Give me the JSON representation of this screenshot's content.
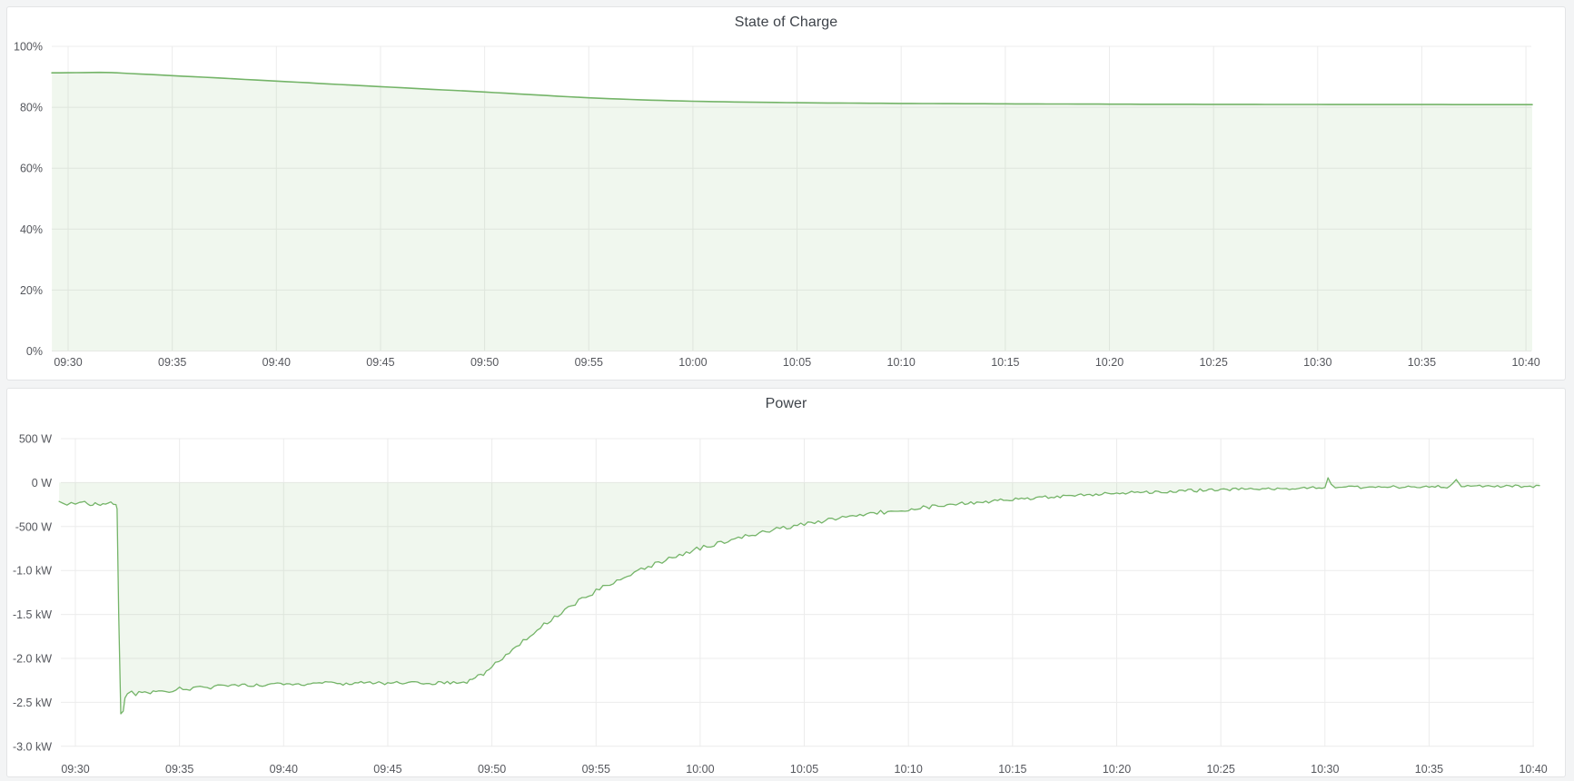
{
  "theme": {
    "page_bg": "#f3f4f5",
    "panel_bg": "#ffffff",
    "panel_border": "#e3e4e6",
    "grid_color": "#ececec",
    "tick_text_color": "#55575d",
    "title_text_color": "#3e434a"
  },
  "panels": [
    {
      "title": "State of Charge",
      "chart_data": {
        "type": "area",
        "title": "State of Charge",
        "legend": false,
        "grid": true,
        "x_ticks": [
          "09:30",
          "09:35",
          "09:40",
          "09:45",
          "09:50",
          "09:55",
          "10:00",
          "10:05",
          "10:10",
          "10:15",
          "10:20",
          "10:25",
          "10:30",
          "10:35",
          "10:40"
        ],
        "x_tick_minutes": [
          0,
          5,
          10,
          15,
          20,
          25,
          30,
          35,
          40,
          45,
          50,
          55,
          60,
          65,
          70
        ],
        "t_unit": "minutes after 09:30",
        "t_domain": [
          -0.78,
          70.3
        ],
        "y_ticks": [
          "100%",
          "80%",
          "60%",
          "40%",
          "20%",
          "0%"
        ],
        "y_tick_values": [
          100,
          80,
          60,
          40,
          20,
          0
        ],
        "ylim": [
          0,
          100
        ],
        "fill_to_value": 0,
        "series": [
          {
            "name": "State of Charge",
            "unit": "%",
            "color": "#74b468",
            "fill": "rgba(116,180,104,0.11)",
            "line_width": 1.6,
            "noise_segments": [],
            "points": [
              [
                -0.78,
                91.3
              ],
              [
                0,
                91.32
              ],
              [
                0.8,
                91.4
              ],
              [
                1.5,
                91.45
              ],
              [
                2.1,
                91.38
              ],
              [
                2.6,
                91.2
              ],
              [
                3,
                91.05
              ],
              [
                4,
                90.72
              ],
              [
                5,
                90.38
              ],
              [
                6,
                90.03
              ],
              [
                7,
                89.68
              ],
              [
                8,
                89.32
              ],
              [
                9,
                88.95
              ],
              [
                10,
                88.58
              ],
              [
                11,
                88.22
              ],
              [
                12,
                87.85
              ],
              [
                13,
                87.48
              ],
              [
                14,
                87.12
              ],
              [
                15,
                86.76
              ],
              [
                16,
                86.4
              ],
              [
                17,
                86.05
              ],
              [
                18,
                85.7
              ],
              [
                19,
                85.36
              ],
              [
                20,
                85.0
              ],
              [
                21,
                84.62
              ],
              [
                22,
                84.22
              ],
              [
                23,
                83.84
              ],
              [
                24,
                83.46
              ],
              [
                25,
                83.1
              ],
              [
                26,
                82.8
              ],
              [
                27,
                82.55
              ],
              [
                28,
                82.33
              ],
              [
                29,
                82.14
              ],
              [
                30,
                81.98
              ],
              [
                31,
                81.85
              ],
              [
                32,
                81.74
              ],
              [
                33,
                81.65
              ],
              [
                34,
                81.57
              ],
              [
                35,
                81.5
              ],
              [
                36,
                81.44
              ],
              [
                37,
                81.39
              ],
              [
                38,
                81.34
              ],
              [
                39,
                81.3
              ],
              [
                40,
                81.26
              ],
              [
                42,
                81.2
              ],
              [
                44,
                81.15
              ],
              [
                46,
                81.1
              ],
              [
                48,
                81.06
              ],
              [
                50,
                81.02
              ],
              [
                52,
                80.99
              ],
              [
                54,
                80.97
              ],
              [
                56,
                80.95
              ],
              [
                58,
                80.93
              ],
              [
                60,
                80.91
              ],
              [
                62,
                80.9
              ],
              [
                64,
                80.89
              ],
              [
                66,
                80.88
              ],
              [
                68,
                80.87
              ],
              [
                70.3,
                80.86
              ]
            ]
          }
        ]
      }
    },
    {
      "title": "Power",
      "chart_data": {
        "type": "area",
        "title": "Power",
        "legend": false,
        "grid": true,
        "x_ticks": [
          "09:30",
          "09:35",
          "09:40",
          "09:45",
          "09:50",
          "09:55",
          "10:00",
          "10:05",
          "10:10",
          "10:15",
          "10:20",
          "10:25",
          "10:30",
          "10:35",
          "10:40"
        ],
        "x_tick_minutes": [
          0,
          5,
          10,
          15,
          20,
          25,
          30,
          35,
          40,
          45,
          50,
          55,
          60,
          65,
          70
        ],
        "t_unit": "minutes after 09:30",
        "t_domain": [
          -0.78,
          70.3
        ],
        "y_ticks": [
          "500 W",
          "0 W",
          "-500 W",
          "-1.0 kW",
          "-1.5 kW",
          "-2.0 kW",
          "-2.5 kW",
          "-3.0 kW"
        ],
        "y_tick_values": [
          500,
          0,
          -500,
          -1000,
          -1500,
          -2000,
          -2500,
          -3000
        ],
        "ylim": [
          -3000,
          500
        ],
        "fill_to_value": 0,
        "series": [
          {
            "name": "Power",
            "unit": "W",
            "color": "#74b468",
            "fill": "rgba(116,180,104,0.11)",
            "line_width": 1.3,
            "noise_seed": 20240917,
            "noise_step_min": 0.15,
            "noise_segments": [
              [
                -0.8,
                1.95,
                13
              ],
              [
                1.95,
                2.45,
                0
              ],
              [
                2.45,
                19.0,
                19
              ],
              [
                19.0,
                30.0,
                26
              ],
              [
                30.0,
                45.0,
                24
              ],
              [
                45.0,
                59.9,
                17
              ],
              [
                59.9,
                60.6,
                0
              ],
              [
                60.6,
                66.15,
                16
              ],
              [
                66.15,
                66.7,
                0
              ],
              [
                66.7,
                70.4,
                15
              ]
            ],
            "points": [
              [
                -0.78,
                -215
              ],
              [
                -0.6,
                -235
              ],
              [
                -0.4,
                -255
              ],
              [
                -0.2,
                -230
              ],
              [
                0,
                -250
              ],
              [
                0.2,
                -235
              ],
              [
                0.45,
                -225
              ],
              [
                0.7,
                -260
              ],
              [
                0.95,
                -240
              ],
              [
                1.2,
                -265
              ],
              [
                1.45,
                -235
              ],
              [
                1.7,
                -220
              ],
              [
                1.95,
                -250
              ],
              [
                2.0,
                -300
              ],
              [
                2.08,
                -1500
              ],
              [
                2.18,
                -2630
              ],
              [
                2.3,
                -2600
              ],
              [
                2.38,
                -2450
              ],
              [
                2.5,
                -2410
              ],
              [
                2.7,
                -2390
              ],
              [
                2.9,
                -2410
              ],
              [
                3.2,
                -2380
              ],
              [
                3.6,
                -2390
              ],
              [
                4,
                -2360
              ],
              [
                4.5,
                -2370
              ],
              [
                5,
                -2340
              ],
              [
                5.5,
                -2350
              ],
              [
                6,
                -2320
              ],
              [
                6.5,
                -2330
              ],
              [
                7,
                -2310
              ],
              [
                7.5,
                -2315
              ],
              [
                8,
                -2295
              ],
              [
                8.7,
                -2305
              ],
              [
                9.4,
                -2290
              ],
              [
                10,
                -2285
              ],
              [
                11,
                -2290
              ],
              [
                12,
                -2280
              ],
              [
                13,
                -2287
              ],
              [
                14,
                -2280
              ],
              [
                15,
                -2284
              ],
              [
                16,
                -2278
              ],
              [
                17,
                -2282
              ],
              [
                18,
                -2276
              ],
              [
                18.8,
                -2268
              ],
              [
                19.2,
                -2230
              ],
              [
                19.6,
                -2170
              ],
              [
                20,
                -2090
              ],
              [
                20.5,
                -1995
              ],
              [
                21,
                -1900
              ],
              [
                21.5,
                -1800
              ],
              [
                22,
                -1705
              ],
              [
                22.5,
                -1615
              ],
              [
                23,
                -1530
              ],
              [
                23.5,
                -1448
              ],
              [
                24,
                -1370
              ],
              [
                24.5,
                -1298
              ],
              [
                25,
                -1232
              ],
              [
                25.5,
                -1170
              ],
              [
                26,
                -1112
              ],
              [
                26.5,
                -1057
              ],
              [
                27,
                -1005
              ],
              [
                27.5,
                -956
              ],
              [
                28,
                -908
              ],
              [
                28.5,
                -863
              ],
              [
                29,
                -821
              ],
              [
                29.5,
                -782
              ],
              [
                30,
                -746
              ],
              [
                30.5,
                -712
              ],
              [
                31,
                -680
              ],
              [
                31.5,
                -649
              ],
              [
                32,
                -620
              ],
              [
                32.5,
                -592
              ],
              [
                33,
                -565
              ],
              [
                33.5,
                -540
              ],
              [
                34,
                -516
              ],
              [
                34.5,
                -493
              ],
              [
                35,
                -471
              ],
              [
                35.5,
                -451
              ],
              [
                36,
                -431
              ],
              [
                36.5,
                -412
              ],
              [
                37,
                -394
              ],
              [
                37.5,
                -377
              ],
              [
                38,
                -361
              ],
              [
                38.5,
                -345
              ],
              [
                39,
                -330
              ],
              [
                39.5,
                -316
              ],
              [
                40,
                -302
              ],
              [
                41,
                -277
              ],
              [
                42,
                -253
              ],
              [
                43,
                -231
              ],
              [
                44,
                -211
              ],
              [
                45,
                -193
              ],
              [
                46,
                -176
              ],
              [
                47,
                -161
              ],
              [
                48,
                -147
              ],
              [
                49,
                -134
              ],
              [
                50,
                -123
              ],
              [
                51,
                -113
              ],
              [
                52,
                -104
              ],
              [
                53,
                -96
              ],
              [
                54,
                -88
              ],
              [
                55,
                -82
              ],
              [
                56,
                -76
              ],
              [
                57,
                -70
              ],
              [
                58,
                -65
              ],
              [
                59,
                -61
              ],
              [
                60,
                -57
              ],
              [
                60.15,
                55
              ],
              [
                60.3,
                -20
              ],
              [
                60.5,
                -60
              ],
              [
                61,
                -48
              ],
              [
                62,
                -55
              ],
              [
                63,
                -45
              ],
              [
                64,
                -52
              ],
              [
                65,
                -42
              ],
              [
                66,
                -50
              ],
              [
                66.3,
                35
              ],
              [
                66.55,
                -45
              ],
              [
                67,
                -40
              ],
              [
                68,
                -50
              ],
              [
                69,
                -38
              ],
              [
                70,
                -45
              ],
              [
                70.3,
                -40
              ]
            ]
          }
        ]
      }
    }
  ]
}
